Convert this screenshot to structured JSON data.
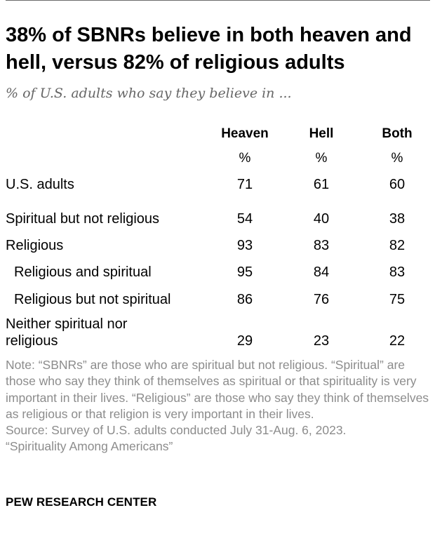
{
  "chart_data": {
    "type": "table",
    "title": "38% of SBNRs believe in both heaven and hell, versus 82% of religious adults",
    "subtitle": "% of U.S. adults who say they believe in ...",
    "columns": [
      "Heaven",
      "Hell",
      "Both"
    ],
    "unit": "%",
    "rows": [
      {
        "label": "U.S. adults",
        "indent": false,
        "values": [
          71,
          61,
          60
        ]
      },
      {
        "label": "Spiritual but not religious",
        "indent": false,
        "values": [
          54,
          40,
          38
        ]
      },
      {
        "label": "Religious",
        "indent": false,
        "values": [
          93,
          83,
          82
        ]
      },
      {
        "label": "Religious and spiritual",
        "indent": true,
        "values": [
          95,
          84,
          83
        ]
      },
      {
        "label": "Religious but not spiritual",
        "indent": true,
        "values": [
          86,
          76,
          75
        ]
      },
      {
        "label_lines": [
          "Neither spiritual nor",
          "religious"
        ],
        "indent": false,
        "values": [
          29,
          23,
          22
        ]
      }
    ]
  },
  "note": "Note: “SBNRs” are those who are spiritual but not religious. “Spiritual” are those who say they think of themselves as spiritual or that spirituality is very important in their lives. “Religious” are those who say they think of themselves as religious or that religion is very important in their lives.",
  "source_line1": "Source: Survey of U.S. adults conducted July 31-Aug. 6, 2023.",
  "source_line2": "“Spirituality Among Americans”",
  "brand": "PEW RESEARCH CENTER",
  "colors": {
    "text": "#000000",
    "subtitle": "#666666",
    "note": "#8c8c8c",
    "rule": "#6a6a6a"
  }
}
